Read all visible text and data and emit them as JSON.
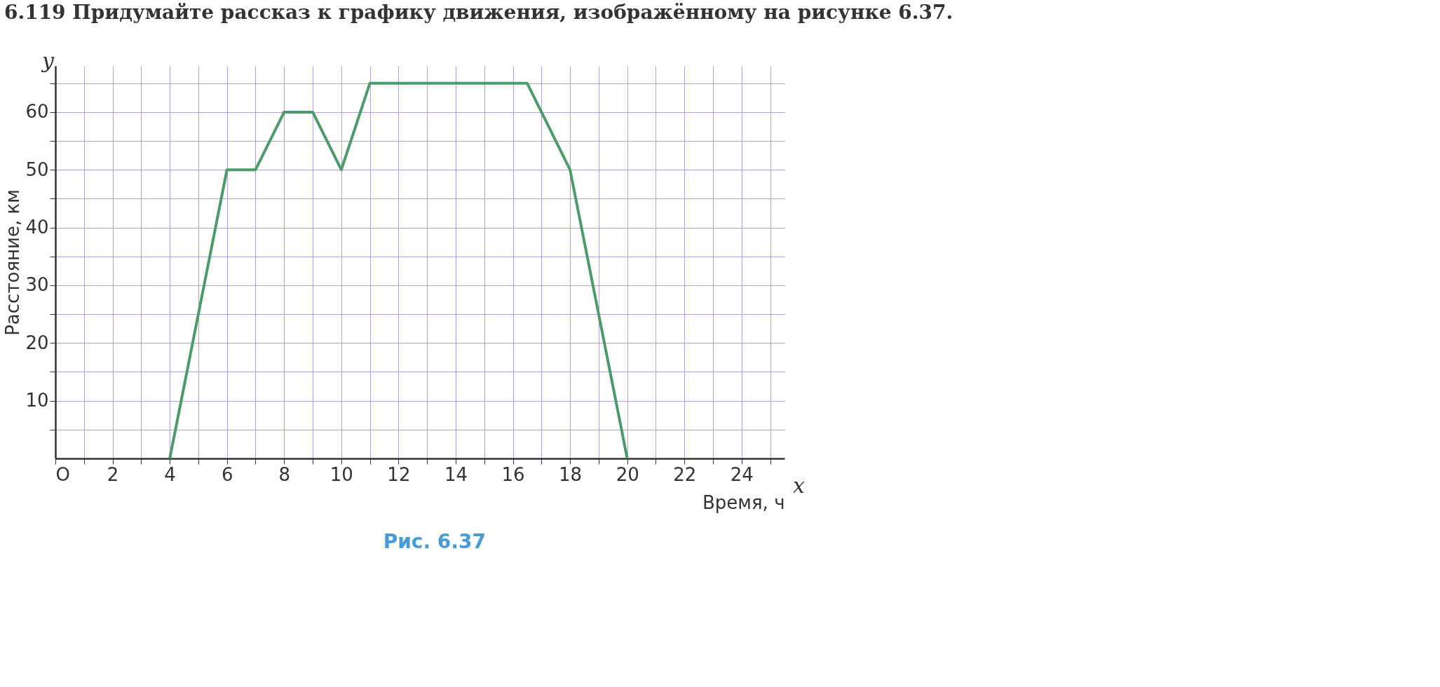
{
  "chart_data": {
    "type": "line",
    "title": "6.119 Придумайте рассказ к графику движения, изображённому на рисунке 6.37.",
    "xlabel": "Время, ч",
    "ylabel": "Расстояние, км",
    "x": [
      4,
      6,
      7,
      8,
      9,
      10,
      11,
      16.5,
      18,
      20
    ],
    "series": [
      {
        "color": "#4f9a6c",
        "values": [
          0,
          50,
          50,
          60,
          60,
          50,
          65,
          65,
          50,
          0
        ]
      }
    ],
    "xlim": [
      0,
      25.5
    ],
    "ylim": [
      0,
      68
    ],
    "xticks": [
      {
        "value": 0,
        "label": "O"
      },
      {
        "value": 1,
        "label": null
      },
      2,
      {
        "value": 3,
        "label": null
      },
      4,
      {
        "value": 5,
        "label": null
      },
      6,
      {
        "value": 7,
        "label": null
      },
      8,
      {
        "value": 9,
        "label": null
      },
      10,
      {
        "value": 11,
        "label": null
      },
      12,
      {
        "value": 13,
        "label": null
      },
      14,
      {
        "value": 15,
        "label": null
      },
      16,
      {
        "value": 17,
        "label": null
      },
      18,
      {
        "value": 19,
        "label": null
      },
      20,
      {
        "value": 21,
        "label": null
      },
      22,
      {
        "value": 23,
        "label": null
      },
      24,
      {
        "value": 25,
        "label": null
      }
    ],
    "yticks": [
      {
        "value": 5,
        "label": null
      },
      10,
      {
        "value": 15,
        "label": null
      },
      20,
      {
        "value": 25,
        "label": null
      },
      30,
      {
        "value": 35,
        "label": null
      },
      40,
      {
        "value": 45,
        "label": null
      },
      50,
      {
        "value": 55,
        "label": null
      },
      60,
      {
        "value": 65,
        "label": null
      }
    ],
    "grid": true,
    "marker": "none",
    "line_style": "solid",
    "annotations": [
      "y",
      "x",
      "Рис. 6.37"
    ]
  }
}
